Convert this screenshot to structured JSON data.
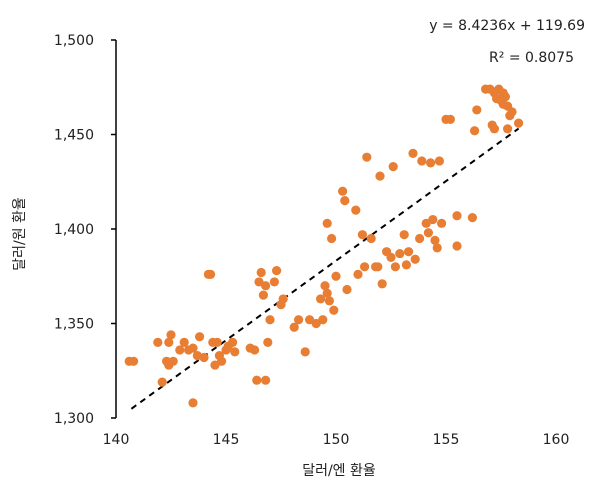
{
  "chart_data": {
    "type": "scatter",
    "xlabel": "달러/엔 환율",
    "ylabel": "달러/원 환율",
    "xlim": [
      140,
      160
    ],
    "ylim": [
      1300,
      1500
    ],
    "x_ticks": [
      140,
      145,
      150,
      155,
      160
    ],
    "y_ticks": [
      1300,
      1350,
      1400,
      1450,
      1500
    ],
    "x_tick_labels": [
      "140",
      "145",
      "150",
      "155",
      "160"
    ],
    "y_tick_labels": [
      "1,300",
      "1,350",
      "1,400",
      "1,450",
      "1,500"
    ],
    "point_color": "#E87E33",
    "trendline": {
      "style": "dashed",
      "color": "#000000",
      "x_range": [
        140.7,
        158.3
      ]
    },
    "annotations": [
      "y = 8.4236x + 119.69",
      "R² = 0.8075"
    ],
    "points": [
      [
        140.6,
        1330
      ],
      [
        140.8,
        1330
      ],
      [
        141.9,
        1340
      ],
      [
        142.1,
        1319
      ],
      [
        142.3,
        1330
      ],
      [
        142.4,
        1340
      ],
      [
        142.5,
        1344
      ],
      [
        142.4,
        1328
      ],
      [
        142.6,
        1330
      ],
      [
        142.9,
        1336
      ],
      [
        143.1,
        1340
      ],
      [
        143.3,
        1336
      ],
      [
        143.5,
        1337
      ],
      [
        143.5,
        1308
      ],
      [
        143.7,
        1333
      ],
      [
        143.8,
        1343
      ],
      [
        144.0,
        1332
      ],
      [
        144.2,
        1376
      ],
      [
        144.3,
        1376
      ],
      [
        144.4,
        1340
      ],
      [
        144.6,
        1340
      ],
      [
        144.5,
        1328
      ],
      [
        144.7,
        1333
      ],
      [
        144.8,
        1330
      ],
      [
        145.0,
        1336
      ],
      [
        145.1,
        1338
      ],
      [
        145.3,
        1340
      ],
      [
        145.4,
        1335
      ],
      [
        146.1,
        1337
      ],
      [
        146.3,
        1336
      ],
      [
        146.4,
        1320
      ],
      [
        146.5,
        1372
      ],
      [
        146.6,
        1377
      ],
      [
        146.7,
        1365
      ],
      [
        146.8,
        1370
      ],
      [
        146.8,
        1320
      ],
      [
        146.9,
        1340
      ],
      [
        147.0,
        1352
      ],
      [
        147.2,
        1372
      ],
      [
        147.3,
        1378
      ],
      [
        147.5,
        1360
      ],
      [
        147.6,
        1363
      ],
      [
        148.1,
        1348
      ],
      [
        148.3,
        1352
      ],
      [
        148.6,
        1335
      ],
      [
        148.8,
        1352
      ],
      [
        149.1,
        1350
      ],
      [
        149.3,
        1363
      ],
      [
        149.4,
        1352
      ],
      [
        149.5,
        1370
      ],
      [
        149.6,
        1366
      ],
      [
        149.7,
        1362
      ],
      [
        149.9,
        1357
      ],
      [
        150.0,
        1375
      ],
      [
        149.6,
        1403
      ],
      [
        149.8,
        1395
      ],
      [
        150.3,
        1420
      ],
      [
        150.4,
        1415
      ],
      [
        150.5,
        1368
      ],
      [
        150.9,
        1410
      ],
      [
        151.0,
        1376
      ],
      [
        151.2,
        1397
      ],
      [
        151.3,
        1380
      ],
      [
        151.4,
        1438
      ],
      [
        151.6,
        1395
      ],
      [
        151.8,
        1380
      ],
      [
        151.9,
        1380
      ],
      [
        152.0,
        1428
      ],
      [
        152.1,
        1371
      ],
      [
        152.3,
        1388
      ],
      [
        152.5,
        1385
      ],
      [
        152.6,
        1433
      ],
      [
        152.7,
        1380
      ],
      [
        152.9,
        1387
      ],
      [
        153.1,
        1397
      ],
      [
        153.2,
        1381
      ],
      [
        153.3,
        1388
      ],
      [
        153.5,
        1440
      ],
      [
        153.6,
        1384
      ],
      [
        153.8,
        1395
      ],
      [
        153.9,
        1436
      ],
      [
        154.1,
        1403
      ],
      [
        154.2,
        1398
      ],
      [
        154.3,
        1435
      ],
      [
        154.4,
        1405
      ],
      [
        154.5,
        1394
      ],
      [
        154.6,
        1390
      ],
      [
        154.7,
        1436
      ],
      [
        154.8,
        1403
      ],
      [
        155.0,
        1458
      ],
      [
        155.2,
        1458
      ],
      [
        155.5,
        1407
      ],
      [
        155.5,
        1391
      ],
      [
        156.2,
        1406
      ],
      [
        156.3,
        1452
      ],
      [
        156.4,
        1463
      ],
      [
        156.8,
        1474
      ],
      [
        157.0,
        1474
      ],
      [
        157.1,
        1455
      ],
      [
        157.2,
        1453
      ],
      [
        157.2,
        1472
      ],
      [
        157.3,
        1469
      ],
      [
        157.4,
        1474
      ],
      [
        157.5,
        1468
      ],
      [
        157.6,
        1466
      ],
      [
        157.6,
        1472
      ],
      [
        157.7,
        1470
      ],
      [
        157.8,
        1465
      ],
      [
        157.8,
        1453
      ],
      [
        157.9,
        1460
      ],
      [
        158.0,
        1462
      ],
      [
        158.3,
        1456
      ]
    ]
  }
}
